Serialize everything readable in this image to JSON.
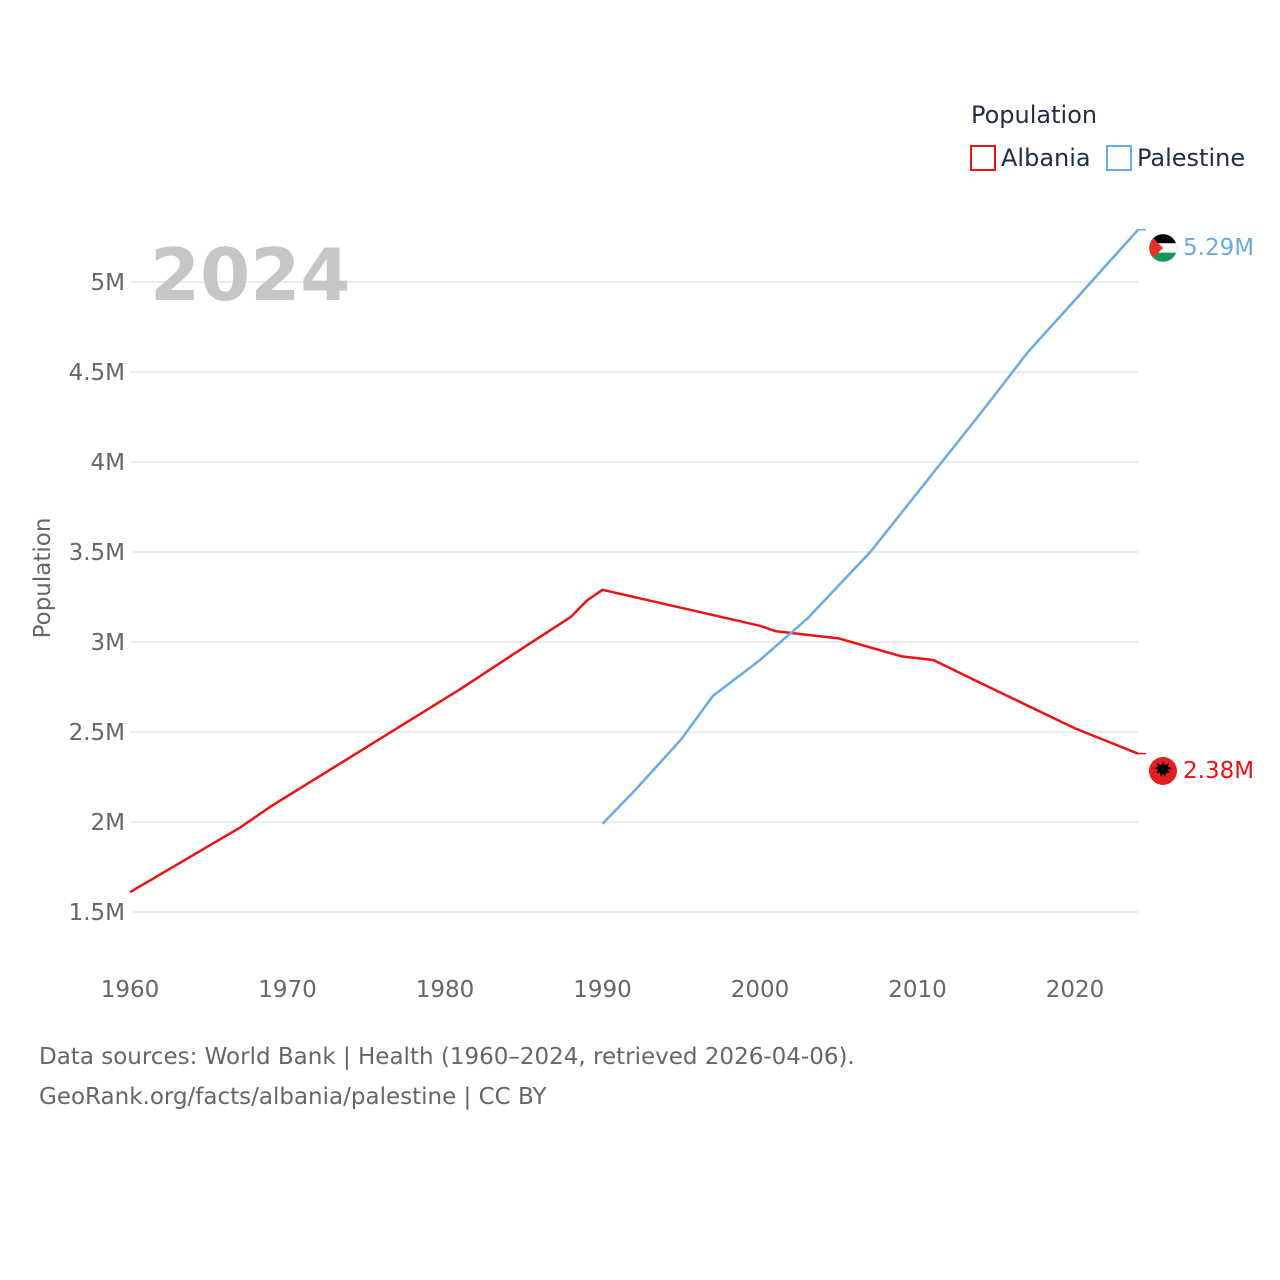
{
  "chart_data": {
    "type": "line",
    "title": "",
    "year_label": "2024",
    "ylabel": "Population",
    "xlabel": "",
    "xlim": [
      1960,
      2024
    ],
    "ylim": [
      1300000,
      5400000
    ],
    "x_ticks": [
      1960,
      1970,
      1980,
      1990,
      2000,
      2010,
      2020
    ],
    "y_ticks": [
      {
        "value": 1500000,
        "label": "1.5M"
      },
      {
        "value": 2000000,
        "label": "2M"
      },
      {
        "value": 2500000,
        "label": "2.5M"
      },
      {
        "value": 3000000,
        "label": "3M"
      },
      {
        "value": 3500000,
        "label": "3.5M"
      },
      {
        "value": 4000000,
        "label": "4M"
      },
      {
        "value": 4500000,
        "label": "4.5M"
      },
      {
        "value": 5000000,
        "label": "5M"
      }
    ],
    "grid": true,
    "legend": {
      "title": "Population",
      "position": "top-right"
    },
    "series": [
      {
        "name": "Albania",
        "color": "#ee1111",
        "end_label": "2.38M",
        "flag_icon": "albania-flag-icon",
        "points": [
          [
            1960,
            1610000
          ],
          [
            1967,
            1970000
          ],
          [
            1969,
            2090000
          ],
          [
            1981,
            2740000
          ],
          [
            1985,
            2970000
          ],
          [
            1988,
            3140000
          ],
          [
            1989,
            3230000
          ],
          [
            1990,
            3290000
          ],
          [
            1995,
            3190000
          ],
          [
            2000,
            3090000
          ],
          [
            2001,
            3060000
          ],
          [
            2005,
            3020000
          ],
          [
            2009,
            2920000
          ],
          [
            2011,
            2900000
          ],
          [
            2015,
            2730000
          ],
          [
            2020,
            2520000
          ],
          [
            2024,
            2380000
          ]
        ]
      },
      {
        "name": "Palestine",
        "color": "#6aaae4",
        "end_label": "5.29M",
        "flag_icon": "palestine-flag-icon",
        "points": [
          [
            1990,
            1990000
          ],
          [
            1992,
            2170000
          ],
          [
            1995,
            2460000
          ],
          [
            1997,
            2700000
          ],
          [
            2000,
            2900000
          ],
          [
            2003,
            3130000
          ],
          [
            2007,
            3500000
          ],
          [
            2010,
            3830000
          ],
          [
            2014,
            4270000
          ],
          [
            2017,
            4610000
          ],
          [
            2020,
            4900000
          ],
          [
            2024,
            5290000
          ]
        ]
      }
    ]
  },
  "footer": {
    "line1": "Data sources: World Bank | Health (1960–2024, retrieved 2026-04-06).",
    "line2": "GeoRank.org/facts/albania/palestine | CC BY"
  }
}
